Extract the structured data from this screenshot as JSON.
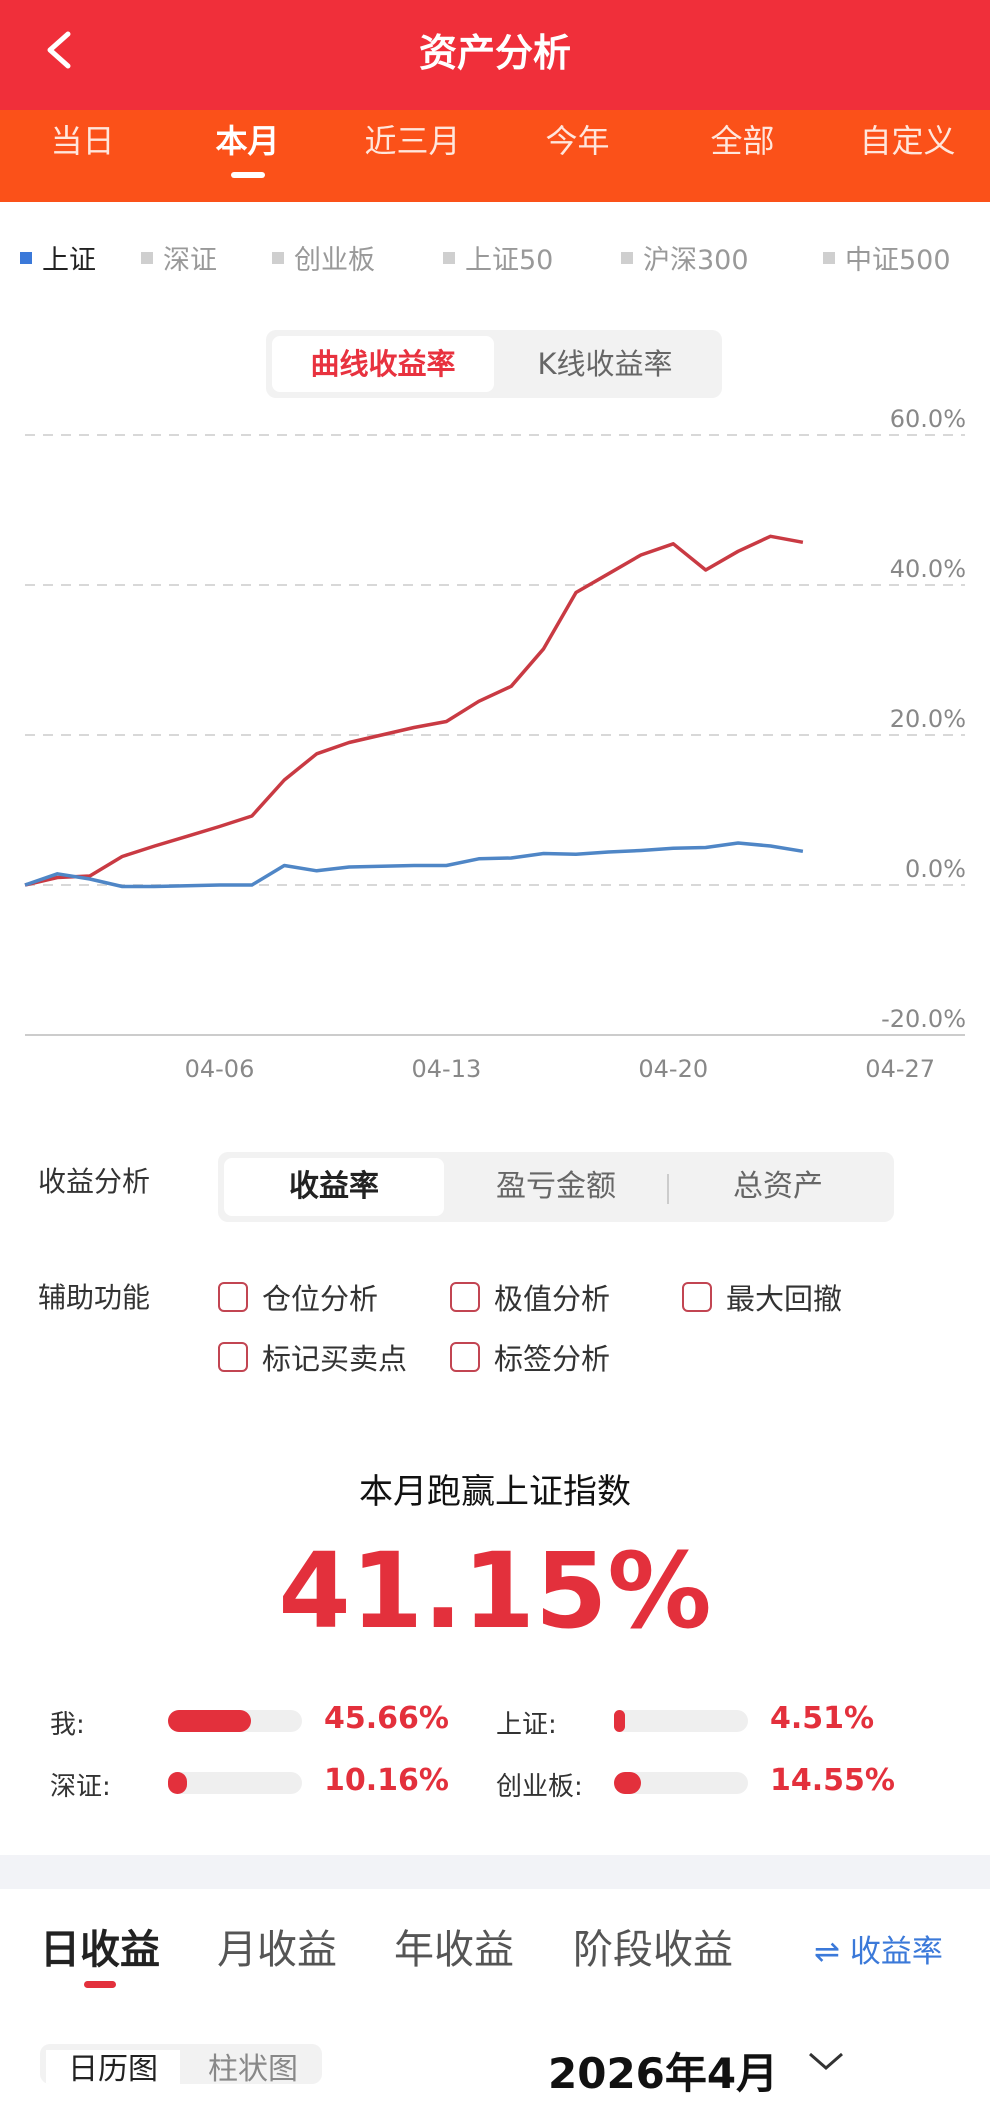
{
  "header": {
    "title": "资产分析"
  },
  "period_tabs": [
    {
      "label": "当日",
      "active": false
    },
    {
      "label": "本月",
      "active": true
    },
    {
      "label": "近三月",
      "active": false
    },
    {
      "label": "今年",
      "active": false
    },
    {
      "label": "全部",
      "active": false
    },
    {
      "label": "自定义",
      "active": false
    }
  ],
  "index_tabs": [
    {
      "label": "上证",
      "active": true
    },
    {
      "label": "深证",
      "active": false
    },
    {
      "label": "创业板",
      "active": false
    },
    {
      "label": "上证50",
      "active": false
    },
    {
      "label": "沪深300",
      "active": false
    },
    {
      "label": "中证500",
      "active": false
    }
  ],
  "chart_mode": {
    "options": [
      "曲线收益率",
      "K线收益率"
    ],
    "active": 0
  },
  "chart_data": {
    "type": "line",
    "ylim": [
      -20,
      60
    ],
    "y_ticks": [
      "60.0%",
      "40.0%",
      "20.0%",
      "0.0%",
      "-20.0%"
    ],
    "x_ticks": [
      "04-06",
      "04-13",
      "04-20",
      "04-27"
    ],
    "x_tick_days": [
      6,
      13,
      20,
      27
    ],
    "xlim_days": [
      0,
      29
    ],
    "series": [
      {
        "color": "#c93a43",
        "points": [
          [
            0,
            0
          ],
          [
            1,
            1
          ],
          [
            2,
            1.2
          ],
          [
            3,
            3.8
          ],
          [
            4,
            5.2
          ],
          [
            5,
            6.5
          ],
          [
            6,
            7.8
          ],
          [
            7,
            9.2
          ],
          [
            8,
            14
          ],
          [
            9,
            17.5
          ],
          [
            10,
            19
          ],
          [
            11,
            20
          ],
          [
            12,
            21
          ],
          [
            13,
            21.8
          ],
          [
            14,
            24.5
          ],
          [
            15,
            26.5
          ],
          [
            16,
            31.5
          ],
          [
            17,
            39
          ],
          [
            18,
            41.5
          ],
          [
            19,
            44
          ],
          [
            20,
            45.5
          ],
          [
            21,
            42
          ],
          [
            22,
            44.5
          ],
          [
            23,
            46.5
          ],
          [
            24,
            45.7
          ]
        ]
      },
      {
        "color": "#4f86c6",
        "points": [
          [
            0,
            0
          ],
          [
            1,
            1.5
          ],
          [
            2,
            0.8
          ],
          [
            3,
            -0.2
          ],
          [
            4,
            -0.2
          ],
          [
            5,
            -0.1
          ],
          [
            6,
            0
          ],
          [
            7,
            0
          ],
          [
            8,
            2.6
          ],
          [
            9,
            1.9
          ],
          [
            10,
            2.4
          ],
          [
            11,
            2.5
          ],
          [
            12,
            2.6
          ],
          [
            13,
            2.6
          ],
          [
            14,
            3.5
          ],
          [
            15,
            3.6
          ],
          [
            16,
            4.2
          ],
          [
            17,
            4.1
          ],
          [
            18,
            4.4
          ],
          [
            19,
            4.6
          ],
          [
            20,
            4.9
          ],
          [
            21,
            5
          ],
          [
            22,
            5.6
          ],
          [
            23,
            5.2
          ],
          [
            24,
            4.5
          ]
        ]
      }
    ]
  },
  "analysis": {
    "label": "收益分析",
    "options": [
      "收益率",
      "盈亏金额",
      "总资产"
    ],
    "active": 0
  },
  "aux": {
    "label": "辅助功能",
    "items": [
      "仓位分析",
      "极值分析",
      "最大回撤",
      "标记买卖点",
      "标签分析"
    ]
  },
  "summary": {
    "headline": "本月跑赢上证指数",
    "value": "41.15%"
  },
  "comparisons": [
    {
      "label": "我:",
      "value": "45.66%",
      "fraction": 0.62
    },
    {
      "label": "上证:",
      "value": "4.51%",
      "fraction": 0.06
    },
    {
      "label": "深证:",
      "value": "10.16%",
      "fraction": 0.14
    },
    {
      "label": "创业板:",
      "value": "14.55%",
      "fraction": 0.2
    }
  ],
  "bottom_tabs": [
    {
      "label": "日收益",
      "active": true
    },
    {
      "label": "月收益",
      "active": false
    },
    {
      "label": "年收益",
      "active": false
    },
    {
      "label": "阶段收益",
      "active": false
    }
  ],
  "rate_toggle": "⇌ 收益率",
  "calendar": {
    "view_options": [
      "日历图",
      "柱状图"
    ],
    "month": "2026年4月"
  }
}
